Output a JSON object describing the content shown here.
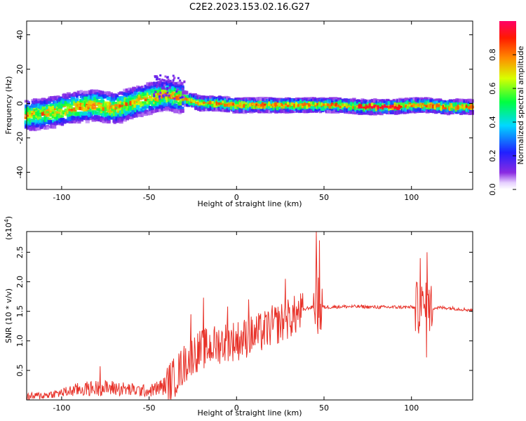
{
  "title": "C2E2.2023.153.02.16.G27",
  "chart_data": [
    {
      "type": "heatmap",
      "xlabel": "Height of straight line (km)",
      "ylabel": "Frequency (Hz)",
      "xlim": [
        -120,
        135
      ],
      "ylim": [
        -50,
        48
      ],
      "xticks": [
        -100,
        -50,
        0,
        50,
        100
      ],
      "yticks": [
        -40,
        -20,
        0,
        20,
        40
      ],
      "colorbar": {
        "label": "Normalized spectral amplitude",
        "range": [
          0,
          1
        ],
        "ticks": [
          "0.0",
          "0.2",
          "0.4",
          "0.6",
          "0.8"
        ],
        "tick_values": [
          0,
          0.2,
          0.4,
          0.6,
          0.8
        ],
        "colormap": "rainbow (white-violet-blue-cyan-green-yellow-orange-red)"
      },
      "ridge": {
        "x": [
          -120,
          -110,
          -100,
          -90,
          -80,
          -70,
          -60,
          -50,
          -45,
          -40,
          -30,
          -20,
          -10,
          0,
          10,
          20,
          30,
          40,
          50,
          60,
          70,
          80,
          90,
          100,
          110,
          120,
          135
        ],
        "freq": [
          -7,
          -6,
          -4,
          -2,
          -1,
          -3,
          0,
          3,
          4,
          5,
          3,
          0,
          0,
          -1,
          -1,
          -1,
          -1,
          -1,
          -1,
          -1,
          -2,
          -2,
          -2,
          -1,
          -1,
          -2,
          -2
        ]
      },
      "peak_band_x": [
        70,
        95
      ],
      "grid": false
    },
    {
      "type": "line",
      "xlabel": "Height of straight line (km)",
      "ylabel": "SNR (10 * v/v)",
      "scale_label": "(x10^4)",
      "scale_base": "(x10",
      "scale_exp": "4",
      "scale_close": ")",
      "xlim": [
        -120,
        135
      ],
      "ylim": [
        0,
        2.85
      ],
      "xticks": [
        -100,
        -50,
        0,
        50,
        100
      ],
      "yticks": [
        "0.5",
        "1.0",
        "1.5",
        "2.0",
        "2.5"
      ],
      "ytick_values": [
        0.5,
        1.0,
        1.5,
        2.0,
        2.5
      ],
      "color": "#e8332a",
      "envelope": {
        "x": [
          -120,
          -110,
          -100,
          -90,
          -80,
          -70,
          -60,
          -50,
          -40,
          -35,
          -30,
          -25,
          -20,
          -15,
          -10,
          -5,
          0,
          5,
          10,
          15,
          20,
          25,
          30,
          35,
          40,
          45,
          47,
          50,
          60,
          70,
          80,
          90,
          100,
          105,
          110,
          115,
          120,
          135
        ],
        "y": [
          0.05,
          0.08,
          0.12,
          0.18,
          0.2,
          0.2,
          0.17,
          0.15,
          0.25,
          0.4,
          0.6,
          0.78,
          0.85,
          0.9,
          0.95,
          1.0,
          1.0,
          1.05,
          1.1,
          1.15,
          1.25,
          1.3,
          1.38,
          1.45,
          1.55,
          1.58,
          1.6,
          1.57,
          1.58,
          1.58,
          1.57,
          1.57,
          1.57,
          1.55,
          1.55,
          1.56,
          1.56,
          1.52
        ]
      },
      "spikes": [
        {
          "x": -78,
          "y": 0.57
        },
        {
          "x": -26,
          "y": 1.45
        },
        {
          "x": -19,
          "y": 1.73
        },
        {
          "x": -5,
          "y": 1.58
        },
        {
          "x": 7,
          "y": 1.7
        },
        {
          "x": 28,
          "y": 2.05
        },
        {
          "x": 45.5,
          "y": 2.85
        },
        {
          "x": 47.5,
          "y": 2.7
        },
        {
          "x": 105,
          "y": 2.4
        },
        {
          "x": 109,
          "y": 2.5
        },
        {
          "x": 108.5,
          "y": 0.72
        }
      ],
      "grid": false
    }
  ]
}
